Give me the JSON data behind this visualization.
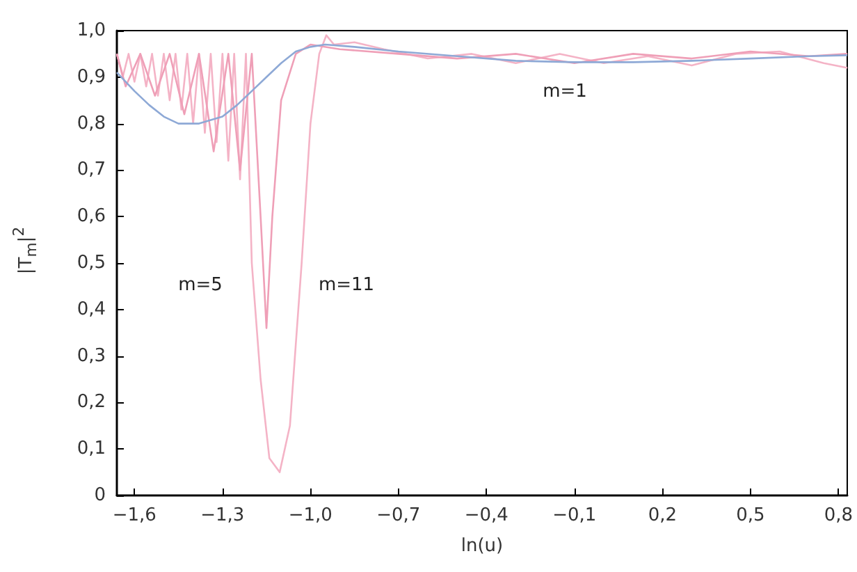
{
  "chart_data": {
    "type": "line",
    "xlabel": "ln(u)",
    "ylabel": "|T$_{m}$|$^{2}$",
    "xlim": [
      -1.66,
      0.83
    ],
    "ylim": [
      0,
      1.0
    ],
    "xticks": [
      {
        "value": -1.6,
        "label": "−1,6"
      },
      {
        "value": -1.3,
        "label": "−1,3"
      },
      {
        "value": -1.0,
        "label": "−1,0"
      },
      {
        "value": -0.7,
        "label": "−0,7"
      },
      {
        "value": -0.4,
        "label": "−0,4"
      },
      {
        "value": -0.1,
        "label": "−0,1"
      },
      {
        "value": 0.2,
        "label": "0,2"
      },
      {
        "value": 0.5,
        "label": "0,5"
      },
      {
        "value": 0.8,
        "label": "0,8"
      }
    ],
    "yticks": [
      0,
      {
        "value": 0.1,
        "label": "0,1"
      },
      {
        "value": 0.2,
        "label": "0,2"
      },
      {
        "value": 0.3,
        "label": "0,3"
      },
      {
        "value": 0.4,
        "label": "0,4"
      },
      {
        "value": 0.5,
        "label": "0,5"
      },
      {
        "value": 0.6,
        "label": "0,6"
      },
      {
        "value": 0.7,
        "label": "0,7"
      },
      {
        "value": 0.8,
        "label": "0,8"
      },
      {
        "value": 0.9,
        "label": "0,9"
      },
      {
        "value": 1.0,
        "label": "1,0"
      }
    ],
    "grid": false,
    "marker": "none",
    "line_style": "solid",
    "series": [
      {
        "color": "#f4b3c6",
        "x": [
          -1.66,
          -1.64,
          -1.62,
          -1.6,
          -1.58,
          -1.56,
          -1.54,
          -1.52,
          -1.5,
          -1.48,
          -1.46,
          -1.44,
          -1.42,
          -1.4,
          -1.38,
          -1.36,
          -1.34,
          -1.32,
          -1.3,
          -1.28,
          -1.26,
          -1.24,
          -1.22,
          -1.2,
          -1.17,
          -1.14,
          -1.105,
          -1.07,
          -1.03,
          -1.0,
          -0.97,
          -0.946,
          -0.92,
          -0.85,
          -0.75,
          -0.6,
          -0.45,
          -0.3,
          -0.15,
          0,
          0.15,
          0.3,
          0.45,
          0.6,
          0.75,
          0.83
        ],
        "values": [
          0.95,
          0.9,
          0.95,
          0.89,
          0.95,
          0.88,
          0.95,
          0.86,
          0.95,
          0.85,
          0.95,
          0.83,
          0.95,
          0.8,
          0.95,
          0.78,
          0.95,
          0.76,
          0.95,
          0.72,
          0.95,
          0.68,
          0.95,
          0.5,
          0.25,
          0.08,
          0.05,
          0.15,
          0.5,
          0.8,
          0.95,
          0.99,
          0.97,
          0.975,
          0.96,
          0.94,
          0.95,
          0.93,
          0.95,
          0.93,
          0.945,
          0.925,
          0.95,
          0.955,
          0.93,
          0.92
        ]
      },
      {
        "color": "#ef9fb7",
        "x": [
          -1.66,
          -1.63,
          -1.58,
          -1.53,
          -1.48,
          -1.43,
          -1.38,
          -1.33,
          -1.28,
          -1.24,
          -1.2,
          -1.17,
          -1.15,
          -1.13,
          -1.1,
          -1.05,
          -1.0,
          -0.9,
          -0.7,
          -0.5,
          -0.3,
          -0.1,
          0.1,
          0.3,
          0.5,
          0.7,
          0.83
        ],
        "values": [
          0.95,
          0.88,
          0.95,
          0.86,
          0.95,
          0.82,
          0.95,
          0.74,
          0.95,
          0.7,
          0.95,
          0.6,
          0.36,
          0.6,
          0.85,
          0.95,
          0.97,
          0.96,
          0.95,
          0.94,
          0.95,
          0.93,
          0.95,
          0.94,
          0.955,
          0.945,
          0.95
        ]
      },
      {
        "color": "#8ea9d6",
        "x": [
          -1.66,
          -1.6,
          -1.55,
          -1.5,
          -1.45,
          -1.38,
          -1.3,
          -1.25,
          -1.2,
          -1.15,
          -1.1,
          -1.05,
          -1.0,
          -0.95,
          -0.85,
          -0.7,
          -0.5,
          -0.3,
          -0.1,
          0.1,
          0.3,
          0.5,
          0.7,
          0.83
        ],
        "values": [
          0.91,
          0.87,
          0.84,
          0.815,
          0.8,
          0.8,
          0.815,
          0.84,
          0.87,
          0.9,
          0.93,
          0.955,
          0.965,
          0.97,
          0.965,
          0.955,
          0.945,
          0.935,
          0.932,
          0.932,
          0.935,
          0.94,
          0.945,
          0.947
        ]
      }
    ],
    "annotations": [
      "m=1",
      "m=5",
      "m=11"
    ]
  }
}
